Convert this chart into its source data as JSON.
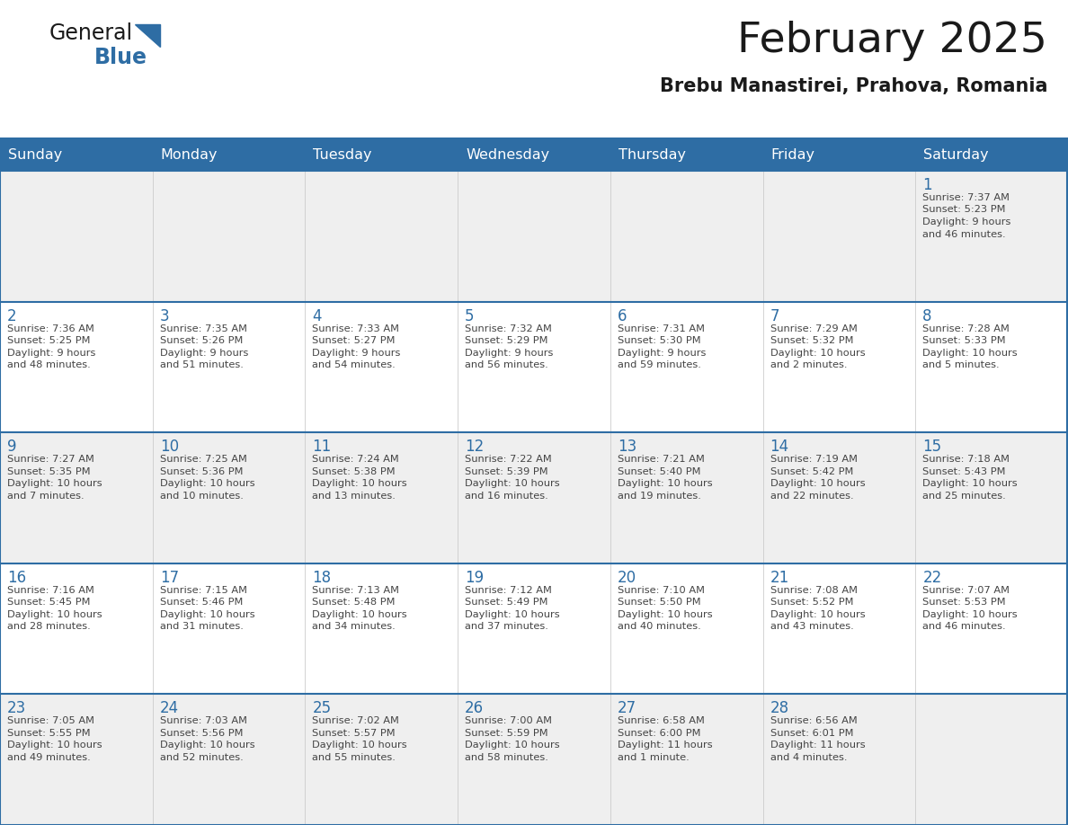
{
  "title": "February 2025",
  "subtitle": "Brebu Manastirei, Prahova, Romania",
  "header_bg": "#2E6DA4",
  "header_text_color": "#FFFFFF",
  "cell_bg_odd": "#EFEFEF",
  "cell_bg_even": "#FFFFFF",
  "day_number_color": "#2E6DA4",
  "text_color": "#444444",
  "line_color": "#2E6DA4",
  "days_of_week": [
    "Sunday",
    "Monday",
    "Tuesday",
    "Wednesday",
    "Thursday",
    "Friday",
    "Saturday"
  ],
  "weeks": [
    [
      {
        "day": null,
        "info": null
      },
      {
        "day": null,
        "info": null
      },
      {
        "day": null,
        "info": null
      },
      {
        "day": null,
        "info": null
      },
      {
        "day": null,
        "info": null
      },
      {
        "day": null,
        "info": null
      },
      {
        "day": 1,
        "info": "Sunrise: 7:37 AM\nSunset: 5:23 PM\nDaylight: 9 hours\nand 46 minutes."
      }
    ],
    [
      {
        "day": 2,
        "info": "Sunrise: 7:36 AM\nSunset: 5:25 PM\nDaylight: 9 hours\nand 48 minutes."
      },
      {
        "day": 3,
        "info": "Sunrise: 7:35 AM\nSunset: 5:26 PM\nDaylight: 9 hours\nand 51 minutes."
      },
      {
        "day": 4,
        "info": "Sunrise: 7:33 AM\nSunset: 5:27 PM\nDaylight: 9 hours\nand 54 minutes."
      },
      {
        "day": 5,
        "info": "Sunrise: 7:32 AM\nSunset: 5:29 PM\nDaylight: 9 hours\nand 56 minutes."
      },
      {
        "day": 6,
        "info": "Sunrise: 7:31 AM\nSunset: 5:30 PM\nDaylight: 9 hours\nand 59 minutes."
      },
      {
        "day": 7,
        "info": "Sunrise: 7:29 AM\nSunset: 5:32 PM\nDaylight: 10 hours\nand 2 minutes."
      },
      {
        "day": 8,
        "info": "Sunrise: 7:28 AM\nSunset: 5:33 PM\nDaylight: 10 hours\nand 5 minutes."
      }
    ],
    [
      {
        "day": 9,
        "info": "Sunrise: 7:27 AM\nSunset: 5:35 PM\nDaylight: 10 hours\nand 7 minutes."
      },
      {
        "day": 10,
        "info": "Sunrise: 7:25 AM\nSunset: 5:36 PM\nDaylight: 10 hours\nand 10 minutes."
      },
      {
        "day": 11,
        "info": "Sunrise: 7:24 AM\nSunset: 5:38 PM\nDaylight: 10 hours\nand 13 minutes."
      },
      {
        "day": 12,
        "info": "Sunrise: 7:22 AM\nSunset: 5:39 PM\nDaylight: 10 hours\nand 16 minutes."
      },
      {
        "day": 13,
        "info": "Sunrise: 7:21 AM\nSunset: 5:40 PM\nDaylight: 10 hours\nand 19 minutes."
      },
      {
        "day": 14,
        "info": "Sunrise: 7:19 AM\nSunset: 5:42 PM\nDaylight: 10 hours\nand 22 minutes."
      },
      {
        "day": 15,
        "info": "Sunrise: 7:18 AM\nSunset: 5:43 PM\nDaylight: 10 hours\nand 25 minutes."
      }
    ],
    [
      {
        "day": 16,
        "info": "Sunrise: 7:16 AM\nSunset: 5:45 PM\nDaylight: 10 hours\nand 28 minutes."
      },
      {
        "day": 17,
        "info": "Sunrise: 7:15 AM\nSunset: 5:46 PM\nDaylight: 10 hours\nand 31 minutes."
      },
      {
        "day": 18,
        "info": "Sunrise: 7:13 AM\nSunset: 5:48 PM\nDaylight: 10 hours\nand 34 minutes."
      },
      {
        "day": 19,
        "info": "Sunrise: 7:12 AM\nSunset: 5:49 PM\nDaylight: 10 hours\nand 37 minutes."
      },
      {
        "day": 20,
        "info": "Sunrise: 7:10 AM\nSunset: 5:50 PM\nDaylight: 10 hours\nand 40 minutes."
      },
      {
        "day": 21,
        "info": "Sunrise: 7:08 AM\nSunset: 5:52 PM\nDaylight: 10 hours\nand 43 minutes."
      },
      {
        "day": 22,
        "info": "Sunrise: 7:07 AM\nSunset: 5:53 PM\nDaylight: 10 hours\nand 46 minutes."
      }
    ],
    [
      {
        "day": 23,
        "info": "Sunrise: 7:05 AM\nSunset: 5:55 PM\nDaylight: 10 hours\nand 49 minutes."
      },
      {
        "day": 24,
        "info": "Sunrise: 7:03 AM\nSunset: 5:56 PM\nDaylight: 10 hours\nand 52 minutes."
      },
      {
        "day": 25,
        "info": "Sunrise: 7:02 AM\nSunset: 5:57 PM\nDaylight: 10 hours\nand 55 minutes."
      },
      {
        "day": 26,
        "info": "Sunrise: 7:00 AM\nSunset: 5:59 PM\nDaylight: 10 hours\nand 58 minutes."
      },
      {
        "day": 27,
        "info": "Sunrise: 6:58 AM\nSunset: 6:00 PM\nDaylight: 11 hours\nand 1 minute."
      },
      {
        "day": 28,
        "info": "Sunrise: 6:56 AM\nSunset: 6:01 PM\nDaylight: 11 hours\nand 4 minutes."
      },
      {
        "day": null,
        "info": null
      }
    ]
  ]
}
